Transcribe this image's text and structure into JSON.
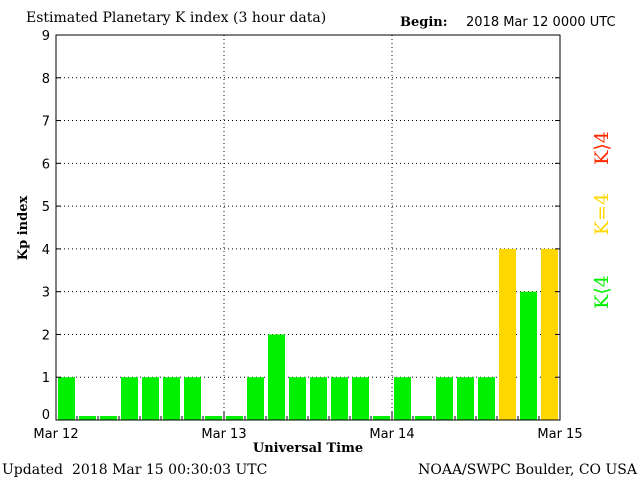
{
  "chart_data": {
    "type": "bar",
    "title": "Estimated Planetary K index (3 hour data)",
    "begin_label": "Begin:",
    "begin_value": "2018 Mar 12 0000 UTC",
    "ylabel": "Kp index",
    "xlabel": "Universal Time",
    "ylim": [
      0,
      9
    ],
    "yticks": [
      0,
      1,
      2,
      3,
      4,
      5,
      6,
      7,
      8,
      9
    ],
    "x_date_labels": [
      "Mar 12",
      "Mar 13",
      "Mar 14",
      "Mar 15"
    ],
    "bars_per_day": 8,
    "values": [
      1,
      0,
      0,
      1,
      1,
      1,
      1,
      0,
      0,
      1,
      2,
      1,
      1,
      1,
      1,
      0,
      1,
      0,
      1,
      1,
      1,
      4,
      3,
      4
    ],
    "colors": {
      "below4": "#00f000",
      "equal4": "#ffd700",
      "above4": "#ff2a00"
    },
    "legend": [
      {
        "label": "K⟩4",
        "color": "#ff2a00"
      },
      {
        "label": "K=4",
        "color": "#ffd700"
      },
      {
        "label": "K⟨4",
        "color": "#00f000"
      }
    ],
    "grid": true
  },
  "footer": {
    "updated_label": "Updated",
    "updated_value": "2018 Mar 15 00:30:03 UTC",
    "source": "NOAA/SWPC Boulder, CO USA"
  }
}
